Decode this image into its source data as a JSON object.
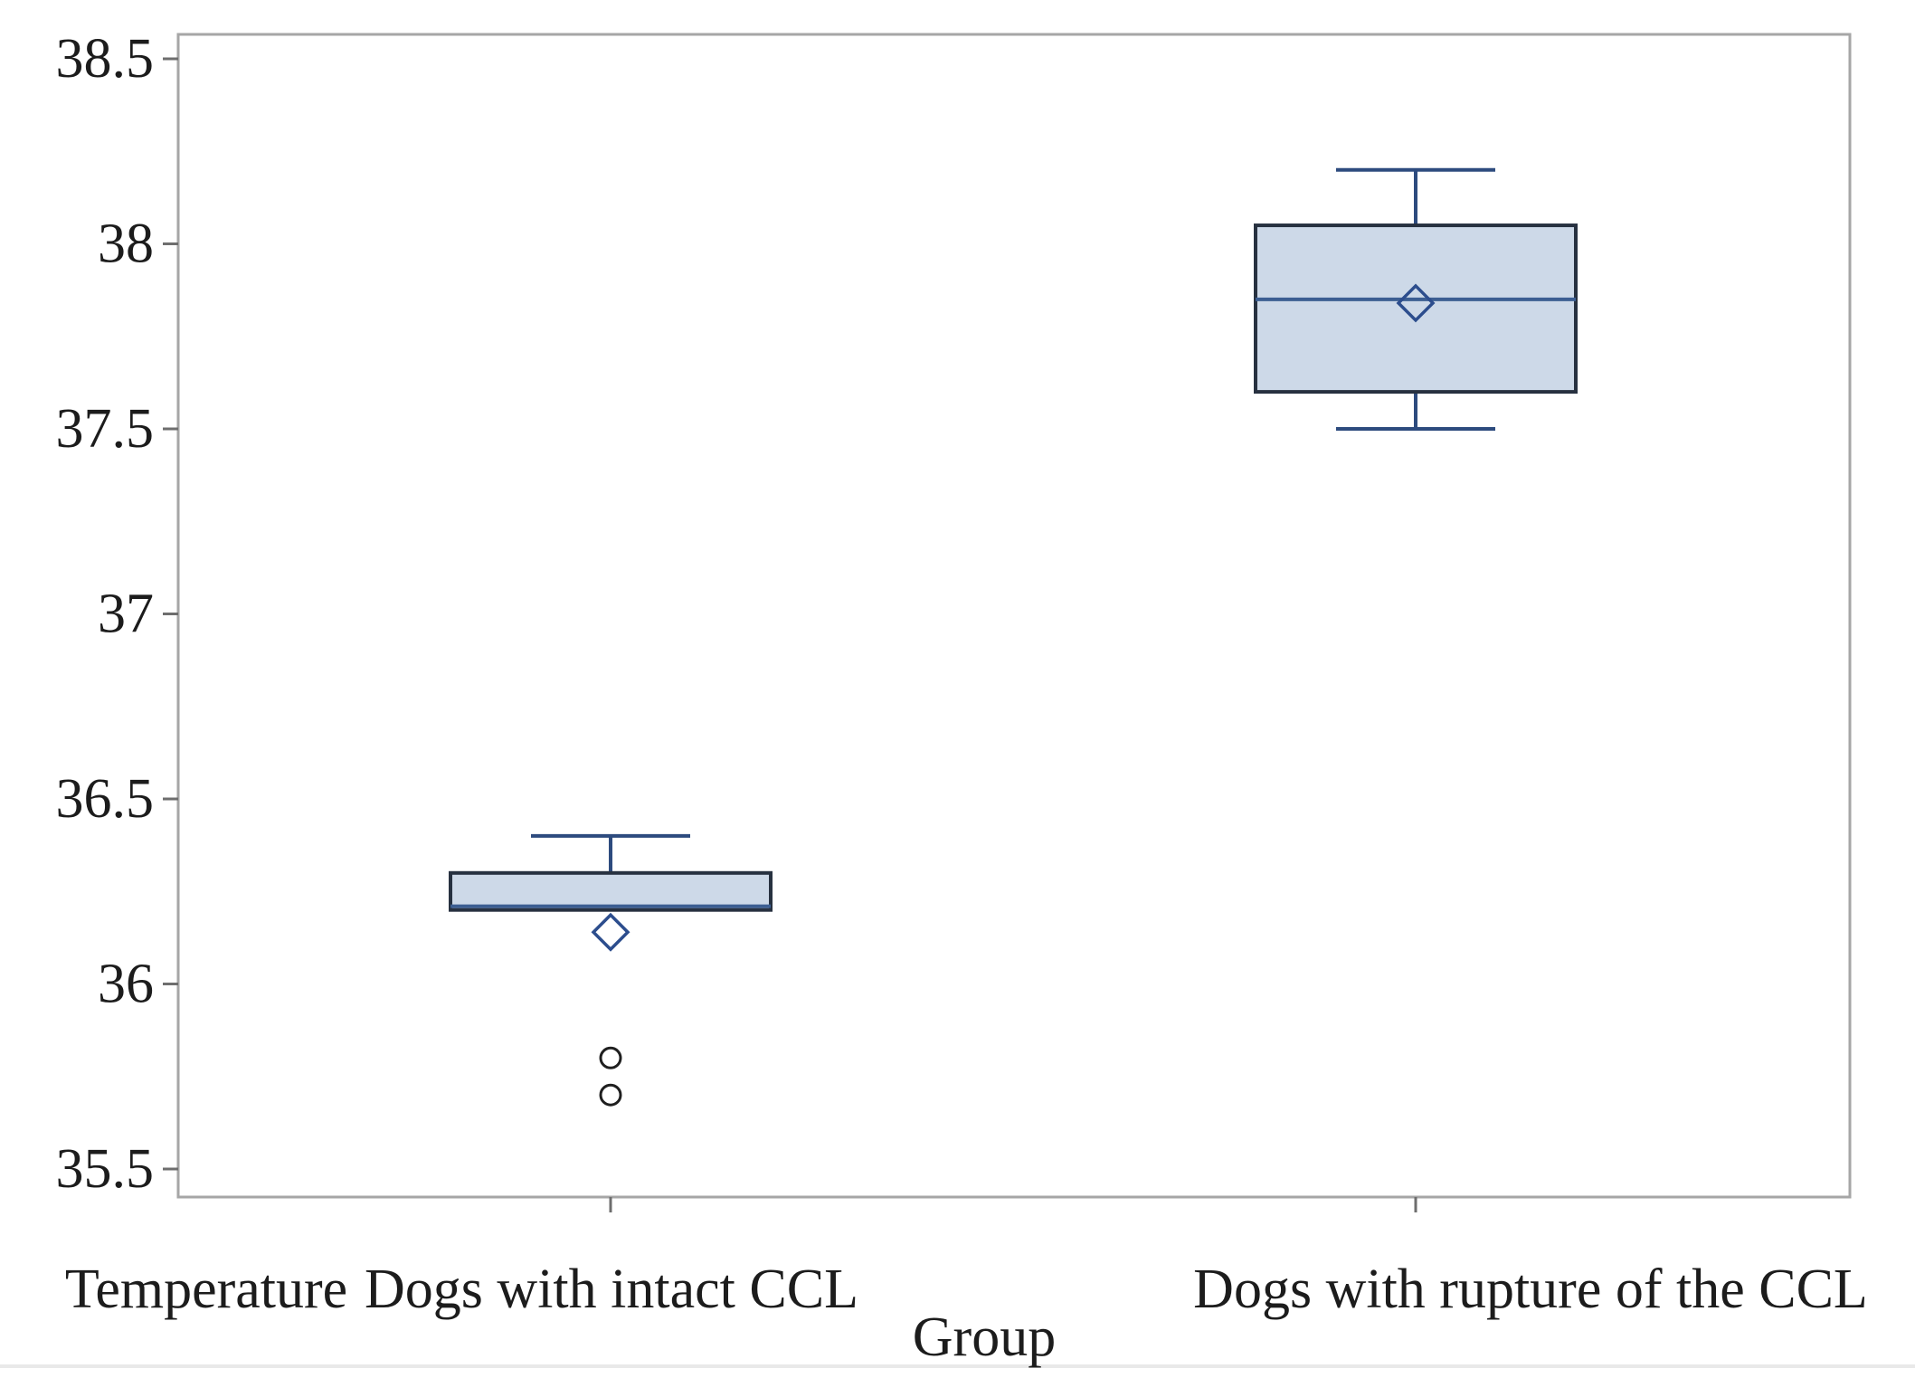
{
  "figure": {
    "background": "#ffffff",
    "frame_color": "#a6a6a6",
    "tick_color": "#6e6e6e",
    "text_color": "#1c1c1c",
    "bottom_rule_color": "#e9e9e9"
  },
  "chart_data": {
    "type": "boxplot",
    "title": "",
    "xlabel": "Group",
    "ylabel": "Temperature",
    "ylim": [
      35.5,
      38.5
    ],
    "y_ticks": [
      38.5,
      38,
      37.5,
      37,
      36.5,
      36,
      35.5
    ],
    "grid": false,
    "legend_position": "none",
    "categories": [
      "Dogs with intact CCL",
      "Dogs with rupture of the CCL"
    ],
    "series": [
      {
        "name": "Dogs with intact CCL",
        "whisker_low": null,
        "q1": 36.2,
        "median": 36.21,
        "q3": 36.3,
        "whisker_high": 36.4,
        "mean": 36.14,
        "outliers": [
          35.8,
          35.7
        ]
      },
      {
        "name": "Dogs with rupture of the CCL",
        "whisker_low": 37.5,
        "q1": 37.6,
        "median": 37.85,
        "q3": 38.05,
        "whisker_high": 38.2,
        "mean": 37.84,
        "outliers": []
      }
    ],
    "colors": {
      "box_fill": "#cdd9e8",
      "box_stroke": "#273140",
      "median": "#3c5e92",
      "whisker": "#2d4b7e",
      "mean_diamond": "#2c4d8d",
      "outlier_stroke": "#1f1f1f"
    }
  }
}
